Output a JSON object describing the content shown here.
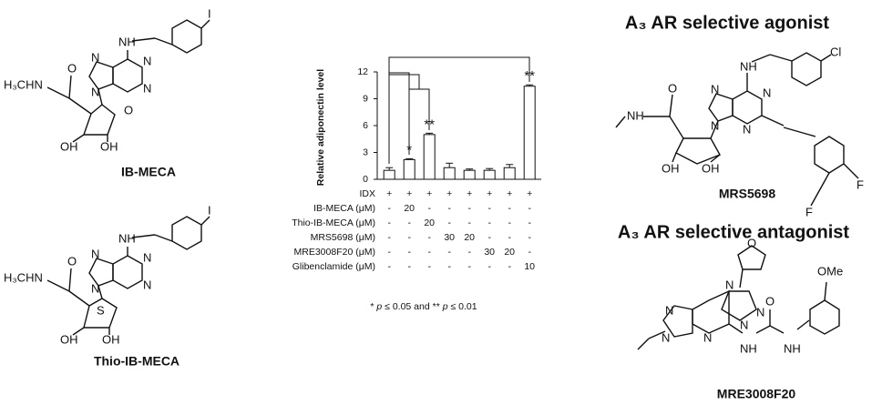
{
  "chart_data": {
    "type": "bar",
    "ylabel": "Relative adiponectin level",
    "categories": [
      null,
      null,
      null,
      null,
      null,
      null,
      null,
      null
    ],
    "values": [
      1.0,
      2.2,
      5.0,
      1.3,
      1.0,
      1.0,
      1.3,
      10.4
    ],
    "errors": [
      0.3,
      0.1,
      0.15,
      0.5,
      0.15,
      0.2,
      0.35,
      0.15
    ],
    "significance": [
      null,
      "*",
      "**",
      null,
      null,
      null,
      null,
      "**"
    ],
    "color": "#ffffff",
    "ylim": [
      0,
      12
    ],
    "yticks": [
      0,
      3,
      6,
      9,
      12
    ],
    "treatments": [
      {
        "label": "IDX",
        "values": [
          "+",
          "+",
          "+",
          "+",
          "+",
          "+",
          "+",
          "+"
        ]
      },
      {
        "label": "IB-MECA (μM)",
        "values": [
          "-",
          "20",
          "-",
          "-",
          "-",
          "-",
          "-",
          "-"
        ]
      },
      {
        "label": "Thio-IB-MECA (μM)",
        "values": [
          "-",
          "-",
          "20",
          "-",
          "-",
          "-",
          "-",
          "-"
        ]
      },
      {
        "label": "MRS5698 (μM)",
        "values": [
          "-",
          "-",
          "-",
          "30",
          "20",
          "-",
          "-",
          "-"
        ]
      },
      {
        "label": "MRE3008F20 (μM)",
        "values": [
          "-",
          "-",
          "-",
          "-",
          "-",
          "30",
          "20",
          "-"
        ]
      },
      {
        "label": "Glibenclamide (μM)",
        "values": [
          "-",
          "-",
          "-",
          "-",
          "-",
          "-",
          "-",
          "10"
        ]
      }
    ],
    "footnote": [
      "* ",
      "p",
      " ≤ 0.05 and ** ",
      "p",
      " ≤ 0.01"
    ]
  },
  "structures": [
    {
      "name": "IB-MECA",
      "atoms": [
        "H₃CHN",
        "O",
        "O",
        "OH",
        "OH",
        "N",
        "N",
        "N",
        "N",
        "NH",
        "I"
      ]
    },
    {
      "name": "Thio-IB-MECA",
      "atoms": [
        "H₃CHN",
        "O",
        "S",
        "OH",
        "OH",
        "N",
        "N",
        "N",
        "N",
        "NH",
        "I"
      ]
    },
    {
      "name": "MRS5698",
      "atoms": [
        "NH",
        "O",
        "OH",
        "OH",
        "N",
        "N",
        "N",
        "N",
        "NH",
        "Cl",
        "F",
        "F"
      ]
    },
    {
      "name": "MRE3008F20",
      "atoms": [
        "O",
        "N",
        "N",
        "N",
        "N",
        "N",
        "N",
        "NH",
        "NH",
        "O",
        "OMe"
      ]
    }
  ],
  "headings": [
    "A₃ AR selective agonist",
    "A₃ AR selective antagonist"
  ]
}
